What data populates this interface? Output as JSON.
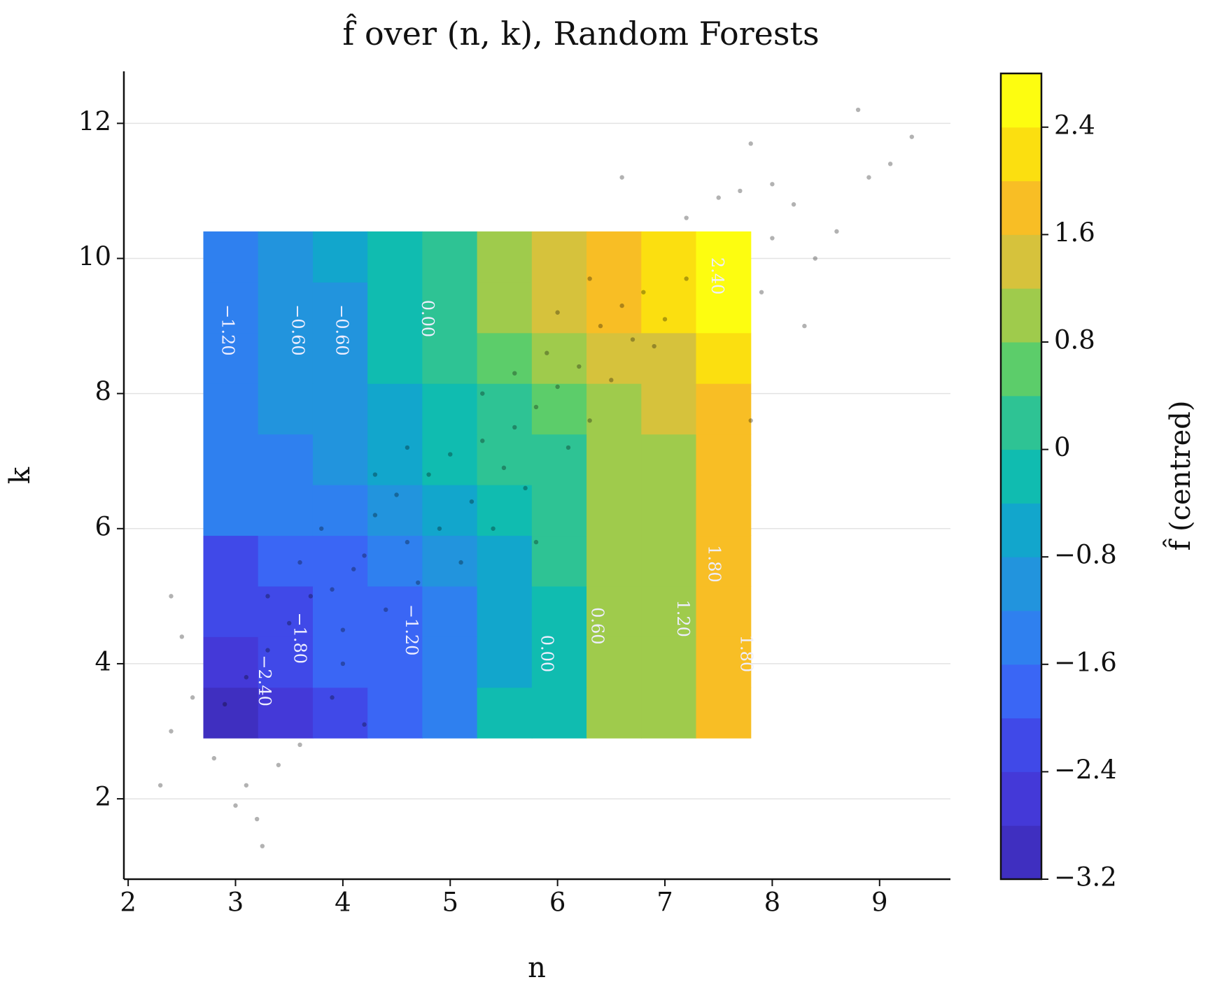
{
  "chart_data": {
    "type": "contourf",
    "title": "f̂ over (n, k), Random Forests",
    "x_label": "n",
    "y_label": "k",
    "xlim": [
      1.96,
      9.66
    ],
    "ylim": [
      0.81,
      12.77
    ],
    "xticks": [
      2,
      3,
      4,
      5,
      6,
      7,
      8,
      9
    ],
    "yticks": [
      2,
      4,
      6,
      8,
      10,
      12
    ],
    "grid": "y",
    "field": {
      "n_edges": [
        2.7,
        3.21,
        3.72,
        4.23,
        4.74,
        5.25,
        5.76,
        6.27,
        6.78,
        7.29,
        7.8
      ],
      "k_edges": [
        2.9,
        3.65,
        4.4,
        5.15,
        5.9,
        6.65,
        7.4,
        8.15,
        8.9,
        9.65,
        10.4
      ],
      "values": [
        [
          -2.9,
          -2.6,
          -2.2,
          -1.9,
          -1.5,
          -0.3,
          -0.2,
          0.9,
          1.0,
          1.8
        ],
        [
          -2.6,
          -2.3,
          -2.0,
          -1.8,
          -1.4,
          -0.5,
          -0.2,
          0.9,
          1.0,
          1.8
        ],
        [
          -2.4,
          -2.2,
          -2.0,
          -1.7,
          -1.3,
          -0.6,
          -0.2,
          0.9,
          1.0,
          1.8
        ],
        [
          -2.2,
          -2.0,
          -1.8,
          -1.5,
          -1.0,
          -0.5,
          0.1,
          0.9,
          1.0,
          1.8
        ],
        [
          -1.4,
          -1.5,
          -1.4,
          -1.1,
          -0.6,
          -0.2,
          0.2,
          0.9,
          1.0,
          1.8
        ],
        [
          -1.4,
          -1.3,
          -1.1,
          -0.8,
          -0.3,
          0.1,
          0.3,
          0.9,
          1.1,
          1.8
        ],
        [
          -1.4,
          -1.2,
          -1.0,
          -0.5,
          -0.1,
          0.3,
          0.6,
          0.9,
          1.3,
          1.8
        ],
        [
          -1.4,
          -1.1,
          -0.9,
          -0.4,
          0.0,
          0.4,
          0.8,
          1.3,
          1.5,
          2.1
        ],
        [
          -1.4,
          -1.1,
          -0.9,
          -0.4,
          0.0,
          0.9,
          1.2,
          1.7,
          2.0,
          2.4
        ],
        [
          -1.4,
          -1.1,
          -0.7,
          -0.4,
          0.1,
          1.0,
          1.3,
          1.7,
          2.2,
          2.6
        ]
      ]
    },
    "contour_labels": [
      {
        "text": "−1.20",
        "n": 2.92,
        "k": 8.94
      },
      {
        "text": "−0.60",
        "n": 3.57,
        "k": 8.94
      },
      {
        "text": "−0.60",
        "n": 3.98,
        "k": 8.94
      },
      {
        "text": "0.00",
        "n": 4.78,
        "k": 9.11
      },
      {
        "text": "2.40",
        "n": 7.48,
        "k": 9.74
      },
      {
        "text": "1.80",
        "n": 7.45,
        "k": 5.48
      },
      {
        "text": "1.20",
        "n": 7.16,
        "k": 4.67
      },
      {
        "text": "0.60",
        "n": 6.36,
        "k": 4.56
      },
      {
        "text": "0.00",
        "n": 5.89,
        "k": 4.15
      },
      {
        "text": "1.80",
        "n": 7.75,
        "k": 4.15
      },
      {
        "text": "−1.20",
        "n": 4.63,
        "k": 4.5
      },
      {
        "text": "−1.80",
        "n": 3.59,
        "k": 4.38
      },
      {
        "text": "−2.40",
        "n": 3.26,
        "k": 3.75
      }
    ],
    "points": {
      "color": "#000000",
      "x": [
        3.9,
        4.1,
        3.7,
        4.3,
        4.5,
        4.8,
        5.0,
        5.3,
        5.6,
        5.8,
        6.0,
        6.2,
        5.9,
        6.4,
        6.6,
        6.8,
        7.0,
        7.2,
        6.9,
        5.5,
        5.2,
        4.9,
        4.6,
        4.2,
        3.5,
        3.3,
        3.1,
        2.9,
        3.6,
        3.8,
        4.0,
        4.4,
        4.7,
        5.1,
        5.4,
        5.7,
        6.1,
        6.3,
        6.5,
        6.7,
        4.6,
        4.3,
        5.3,
        5.6,
        6.0,
        6.3,
        2.4,
        2.5,
        2.6,
        2.4,
        2.3,
        2.8,
        3.1,
        3.2,
        3.25,
        3.4,
        3.6,
        3.0,
        7.9,
        8.0,
        8.2,
        8.4,
        8.6,
        8.9,
        9.1,
        9.3,
        8.8,
        7.7,
        7.5,
        7.2,
        6.6,
        7.8,
        8.0,
        8.3,
        7.8,
        3.9,
        4.2,
        4.0,
        3.3,
        5.8
      ],
      "y": [
        5.1,
        5.4,
        5.0,
        6.2,
        6.5,
        6.8,
        7.1,
        7.3,
        7.5,
        7.8,
        8.1,
        8.4,
        8.6,
        9.0,
        9.3,
        9.5,
        9.1,
        9.7,
        8.7,
        6.9,
        6.4,
        6.0,
        5.8,
        5.6,
        4.6,
        4.2,
        3.8,
        3.4,
        5.5,
        6.0,
        4.5,
        4.8,
        5.2,
        5.5,
        6.0,
        6.6,
        7.2,
        7.6,
        8.2,
        8.8,
        7.2,
        6.8,
        8.0,
        8.3,
        9.2,
        9.7,
        5.0,
        4.4,
        3.5,
        3.0,
        2.2,
        2.6,
        2.2,
        1.7,
        1.3,
        2.5,
        2.8,
        1.9,
        9.5,
        10.3,
        10.8,
        10.0,
        10.4,
        11.2,
        11.4,
        11.8,
        12.2,
        11.0,
        10.9,
        10.6,
        11.2,
        11.7,
        11.1,
        9.0,
        7.6,
        3.5,
        3.1,
        4.0,
        5.0,
        5.8
      ]
    },
    "colorbar": {
      "label": "f̂ (centred)",
      "levels": [
        -3.2,
        -2.8,
        -2.4,
        -2.0,
        -1.6,
        -1.2,
        -0.8,
        -0.4,
        0.0,
        0.4,
        0.8,
        1.2,
        1.6,
        2.0,
        2.4,
        2.8
      ],
      "colors": [
        "#3f2fc0",
        "#4439d8",
        "#4049e8",
        "#3a66f5",
        "#2f80ef",
        "#2294dd",
        "#12a6cc",
        "#10bcb0",
        "#2ec394",
        "#5ccd6a",
        "#9fcb4c",
        "#d6c23c",
        "#f8be25",
        "#fbdf10",
        "#fdfd10"
      ],
      "ticks": [
        {
          "value": -3.2,
          "label": "−3.2"
        },
        {
          "value": -2.4,
          "label": "−2.4"
        },
        {
          "value": -1.6,
          "label": "−1.6"
        },
        {
          "value": -0.8,
          "label": "−0.8"
        },
        0.0,
        0.8,
        1.6,
        2.4
      ]
    }
  }
}
